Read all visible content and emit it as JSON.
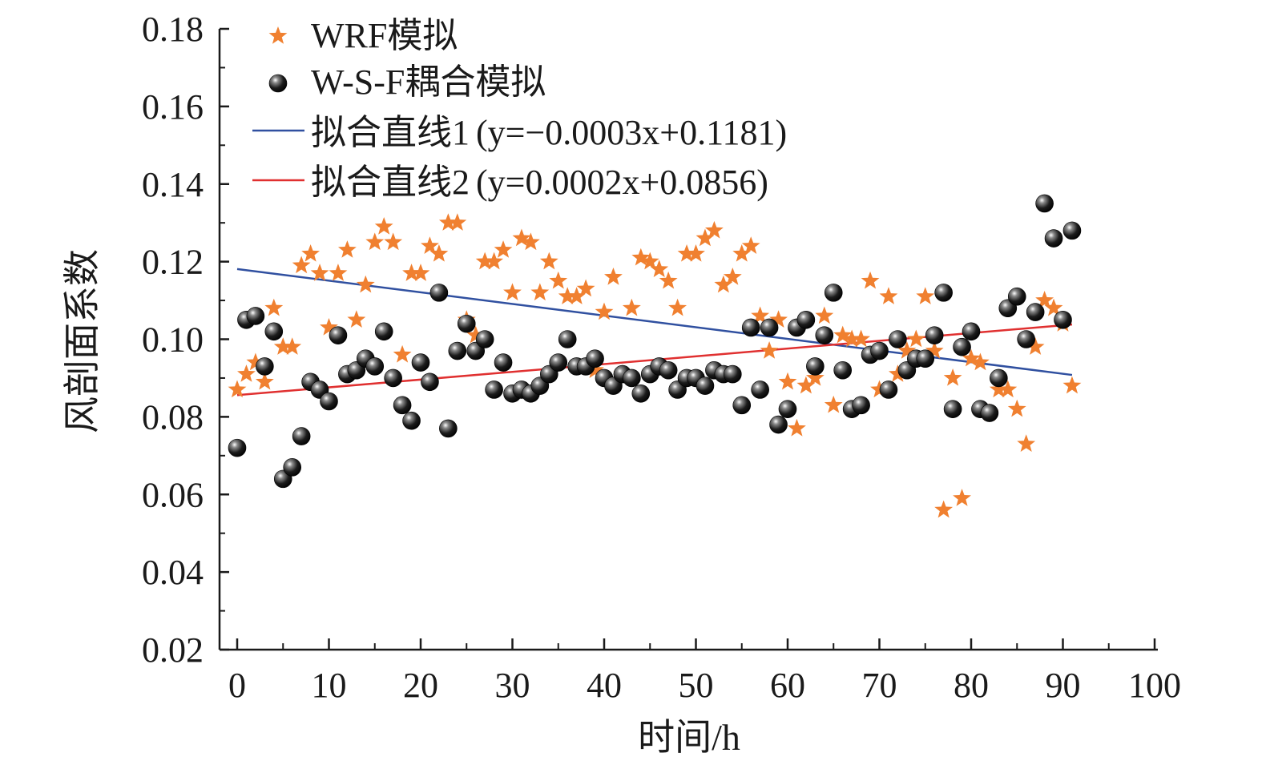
{
  "chart_data": {
    "type": "scatter",
    "title": "",
    "xlabel": "时间/h",
    "ylabel": "风剖面系数",
    "xlim": [
      0,
      100
    ],
    "ylim": [
      0.02,
      0.18
    ],
    "xticks": [
      "0",
      "10",
      "20",
      "30",
      "40",
      "50",
      "60",
      "70",
      "80",
      "90",
      "100"
    ],
    "yticks": [
      "0.02",
      "0.04",
      "0.06",
      "0.08",
      "0.10",
      "0.12",
      "0.14",
      "0.16",
      "0.18"
    ],
    "grid": false,
    "legend_position": "top-left",
    "series": [
      {
        "name": "WRF模拟",
        "marker": "star",
        "color": "#F08030",
        "x": [
          0,
          1,
          2,
          3,
          4,
          5,
          6,
          7,
          8,
          9,
          10,
          11,
          12,
          13,
          14,
          15,
          16,
          17,
          18,
          19,
          20,
          21,
          22,
          23,
          24,
          25,
          26,
          27,
          28,
          29,
          30,
          31,
          32,
          33,
          34,
          35,
          36,
          37,
          38,
          39,
          40,
          41,
          42,
          43,
          44,
          45,
          46,
          47,
          48,
          49,
          50,
          51,
          52,
          53,
          54,
          55,
          56,
          57,
          58,
          59,
          60,
          61,
          62,
          63,
          64,
          65,
          66,
          67,
          68,
          69,
          70,
          71,
          72,
          73,
          74,
          75,
          76,
          77,
          78,
          79,
          80,
          81,
          82,
          83,
          84,
          85,
          86,
          87,
          88,
          89,
          90,
          91
        ],
        "y": [
          0.087,
          0.091,
          0.094,
          0.089,
          0.108,
          0.098,
          0.098,
          0.119,
          0.122,
          0.117,
          0.103,
          0.117,
          0.123,
          0.105,
          0.114,
          0.125,
          0.129,
          0.125,
          0.096,
          0.117,
          0.117,
          0.124,
          0.122,
          0.13,
          0.13,
          0.105,
          0.101,
          0.12,
          0.12,
          0.123,
          0.112,
          0.126,
          0.125,
          0.112,
          0.12,
          0.115,
          0.111,
          0.111,
          0.113,
          0.092,
          0.107,
          0.116,
          0.091,
          0.108,
          0.121,
          0.12,
          0.118,
          0.115,
          0.108,
          0.122,
          0.122,
          0.126,
          0.128,
          0.114,
          0.116,
          0.122,
          0.124,
          0.106,
          0.097,
          0.105,
          0.089,
          0.077,
          0.088,
          0.09,
          0.106,
          0.083,
          0.101,
          0.1,
          0.1,
          0.115,
          0.087,
          0.111,
          0.091,
          0.097,
          0.1,
          0.111,
          0.097,
          0.056,
          0.09,
          0.059,
          0.095,
          0.094,
          0.081,
          0.087,
          0.087,
          0.082,
          0.073,
          0.098,
          0.11,
          0.108,
          0.104,
          0.088
        ]
      },
      {
        "name": "W-S-F耦合模拟",
        "marker": "sphere",
        "color": "#111111",
        "x": [
          0,
          1,
          2,
          3,
          4,
          5,
          6,
          7,
          8,
          9,
          10,
          11,
          12,
          13,
          14,
          15,
          16,
          17,
          18,
          19,
          20,
          21,
          22,
          23,
          24,
          25,
          26,
          27,
          28,
          29,
          30,
          31,
          32,
          33,
          34,
          35,
          36,
          37,
          38,
          39,
          40,
          41,
          42,
          43,
          44,
          45,
          46,
          47,
          48,
          49,
          50,
          51,
          52,
          53,
          54,
          55,
          56,
          57,
          58,
          59,
          60,
          61,
          62,
          63,
          64,
          65,
          66,
          67,
          68,
          69,
          70,
          71,
          72,
          73,
          74,
          75,
          76,
          77,
          78,
          79,
          80,
          81,
          82,
          83,
          84,
          85,
          86,
          87,
          88,
          89,
          90,
          91
        ],
        "y": [
          0.072,
          0.105,
          0.106,
          0.093,
          0.102,
          0.064,
          0.067,
          0.075,
          0.089,
          0.087,
          0.084,
          0.101,
          0.091,
          0.092,
          0.095,
          0.093,
          0.102,
          0.09,
          0.083,
          0.079,
          0.094,
          0.089,
          0.112,
          0.077,
          0.097,
          0.104,
          0.097,
          0.1,
          0.087,
          0.094,
          0.086,
          0.087,
          0.086,
          0.088,
          0.091,
          0.094,
          0.1,
          0.093,
          0.093,
          0.095,
          0.09,
          0.088,
          0.091,
          0.09,
          0.086,
          0.091,
          0.093,
          0.092,
          0.087,
          0.09,
          0.09,
          0.088,
          0.092,
          0.091,
          0.091,
          0.083,
          0.103,
          0.087,
          0.103,
          0.078,
          0.082,
          0.103,
          0.105,
          0.093,
          0.101,
          0.112,
          0.092,
          0.082,
          0.083,
          0.096,
          0.097,
          0.087,
          0.1,
          0.092,
          0.095,
          0.095,
          0.101,
          0.112,
          0.082,
          0.098,
          0.102,
          0.082,
          0.081,
          0.09,
          0.108,
          0.111,
          0.1,
          0.107,
          0.135,
          0.126,
          0.105,
          0.128
        ]
      }
    ],
    "fit_lines": [
      {
        "name": "拟合直线1",
        "equation": "(y=−0.0003x+0.1181)",
        "slope": -0.0003,
        "intercept": 0.1181,
        "x_range": [
          0,
          91
        ],
        "color": "#3050A0"
      },
      {
        "name": "拟合直线2",
        "equation": "(y=0.0002x+0.0856)",
        "slope": 0.0002,
        "intercept": 0.0856,
        "x_range": [
          0,
          91
        ],
        "color": "#E03030"
      }
    ]
  }
}
